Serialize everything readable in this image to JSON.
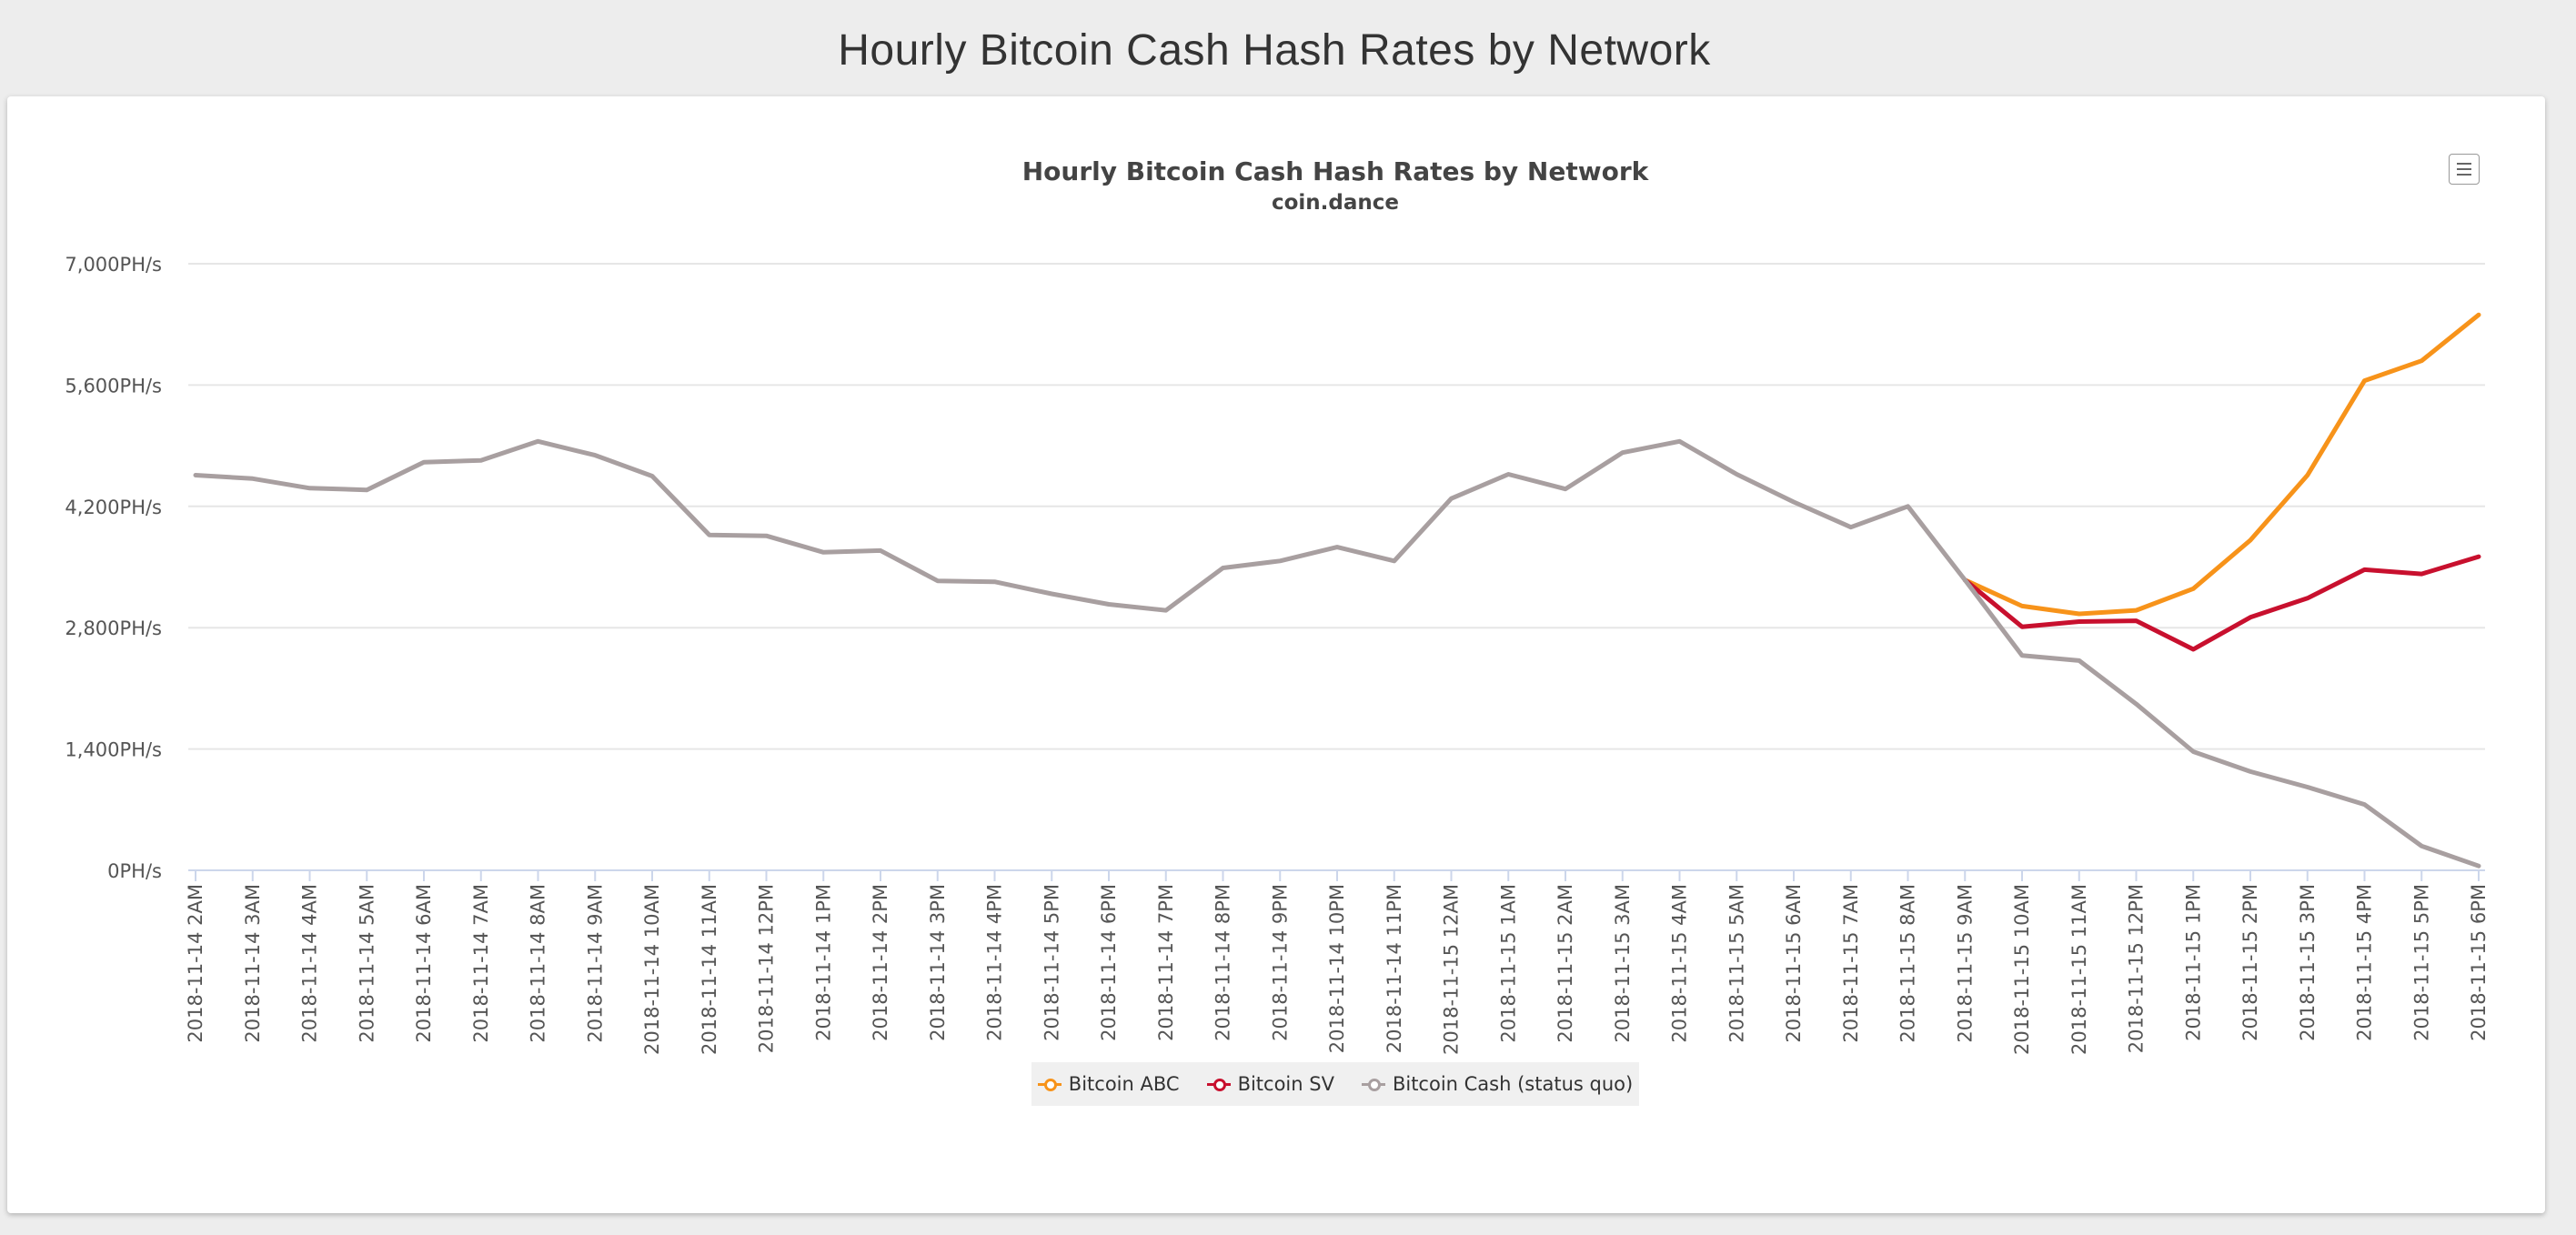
{
  "page": {
    "title": "Hourly Bitcoin Cash Hash Rates by Network"
  },
  "menu": {
    "icon": "hamburger-menu-icon"
  },
  "chart_data": {
    "type": "line",
    "title": "Hourly Bitcoin Cash Hash Rates by Network",
    "subtitle": "coin.dance",
    "xlabel": "",
    "ylabel": "",
    "ylim": [
      0,
      7000
    ],
    "yticks": [
      0,
      1400,
      2800,
      4200,
      5600,
      7000
    ],
    "ytick_labels": [
      "0PH/s",
      "1,400PH/s",
      "2,800PH/s",
      "4,200PH/s",
      "5,600PH/s",
      "7,000PH/s"
    ],
    "grid": true,
    "legend_position": "bottom-center",
    "categories": [
      "2018-11-14 2AM",
      "2018-11-14 3AM",
      "2018-11-14 4AM",
      "2018-11-14 5AM",
      "2018-11-14 6AM",
      "2018-11-14 7AM",
      "2018-11-14 8AM",
      "2018-11-14 9AM",
      "2018-11-14 10AM",
      "2018-11-14 11AM",
      "2018-11-14 12PM",
      "2018-11-14 1PM",
      "2018-11-14 2PM",
      "2018-11-14 3PM",
      "2018-11-14 4PM",
      "2018-11-14 5PM",
      "2018-11-14 6PM",
      "2018-11-14 7PM",
      "2018-11-14 8PM",
      "2018-11-14 9PM",
      "2018-11-14 10PM",
      "2018-11-14 11PM",
      "2018-11-15 12AM",
      "2018-11-15 1AM",
      "2018-11-15 2AM",
      "2018-11-15 3AM",
      "2018-11-15 4AM",
      "2018-11-15 5AM",
      "2018-11-15 6AM",
      "2018-11-15 7AM",
      "2018-11-15 8AM",
      "2018-11-15 9AM",
      "2018-11-15 10AM",
      "2018-11-15 11AM",
      "2018-11-15 12PM",
      "2018-11-15 1PM",
      "2018-11-15 2PM",
      "2018-11-15 3PM",
      "2018-11-15 4PM",
      "2018-11-15 5PM",
      "2018-11-15 6PM"
    ],
    "series": [
      {
        "name": "Bitcoin ABC",
        "color": "#f7931a",
        "values": [
          null,
          null,
          null,
          null,
          null,
          null,
          null,
          null,
          null,
          null,
          null,
          null,
          null,
          null,
          null,
          null,
          null,
          null,
          null,
          null,
          null,
          null,
          null,
          null,
          null,
          null,
          null,
          null,
          null,
          null,
          null,
          3350,
          3050,
          2960,
          3000,
          3250,
          3810,
          4560,
          5650,
          5880,
          6410
        ]
      },
      {
        "name": "Bitcoin SV",
        "color": "#c8102e",
        "values": [
          null,
          null,
          null,
          null,
          null,
          null,
          null,
          null,
          null,
          null,
          null,
          null,
          null,
          null,
          null,
          null,
          null,
          null,
          null,
          null,
          null,
          null,
          null,
          null,
          null,
          null,
          null,
          null,
          null,
          null,
          null,
          3350,
          2810,
          2870,
          2880,
          2550,
          2920,
          3140,
          3470,
          3420,
          3620
        ]
      },
      {
        "name": "Bitcoin Cash (status quo)",
        "color": "#a89fa0",
        "values": [
          4560,
          4520,
          4410,
          4390,
          4710,
          4730,
          4950,
          4790,
          4550,
          3870,
          3860,
          3670,
          3690,
          3340,
          3330,
          3190,
          3070,
          3000,
          3490,
          3570,
          3730,
          3570,
          4290,
          4570,
          4400,
          4820,
          4950,
          4570,
          4250,
          3960,
          4200,
          3350,
          2480,
          2420,
          1920,
          1370,
          1140,
          960,
          760,
          280,
          50
        ]
      }
    ]
  }
}
